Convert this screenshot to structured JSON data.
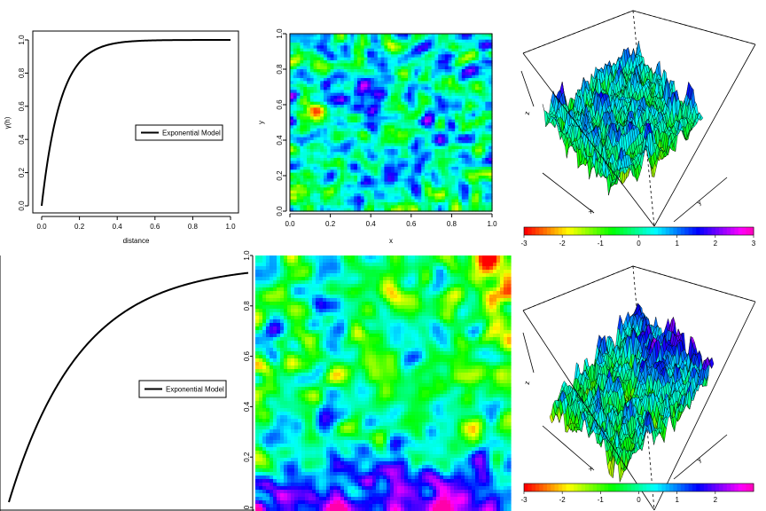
{
  "chart_data": [
    {
      "type": "line",
      "panel": "variogram-top",
      "xlabel": "distance",
      "ylabel": "γ(h)",
      "xticks": [
        "0.0",
        "0.2",
        "0.4",
        "0.6",
        "0.8",
        "1.0"
      ],
      "yticks": [
        "0.0",
        "0.2",
        "0.4",
        "0.6",
        "0.8",
        "1.0"
      ],
      "xlim": [
        0,
        1
      ],
      "ylim": [
        0,
        1
      ],
      "legend": "Exponential Model",
      "legend_position": "right",
      "range_param": 0.1,
      "x": [
        0,
        0.01,
        0.02,
        0.03,
        0.04,
        0.05,
        0.06,
        0.08,
        0.1,
        0.12,
        0.15,
        0.18,
        0.2,
        0.25,
        0.3,
        0.35,
        0.4,
        0.5,
        0.6,
        0.7,
        0.8,
        0.9,
        1.0
      ],
      "y": [
        0,
        0.095,
        0.181,
        0.259,
        0.33,
        0.393,
        0.451,
        0.551,
        0.632,
        0.699,
        0.777,
        0.835,
        0.865,
        0.918,
        0.95,
        0.97,
        0.982,
        0.993,
        0.998,
        0.999,
        1.0,
        1.0,
        1.0
      ]
    },
    {
      "type": "heatmap",
      "panel": "field-top",
      "xlabel": "x",
      "ylabel": "y",
      "xticks": [
        "0.0",
        "0.2",
        "0.4",
        "0.6",
        "0.8",
        "1.0"
      ],
      "yticks": [
        "0.0",
        "0.2",
        "0.4",
        "0.6",
        "0.8",
        "1.0"
      ],
      "xlim": [
        0,
        1
      ],
      "ylim": [
        0,
        1
      ],
      "colormap": "rainbow red-to-magenta",
      "range": [
        -3,
        3
      ]
    },
    {
      "type": "heatmap",
      "panel": "surface-top",
      "xlabel": "x",
      "ylabel": "y",
      "zlabel": "z",
      "colorbar_ticks": [
        "-3",
        "-2",
        "-1",
        "0",
        "1",
        "2",
        "3"
      ],
      "range": [
        -3,
        3
      ]
    },
    {
      "type": "line",
      "panel": "variogram-bottom",
      "legend": "Exponential Model",
      "legend_position": "right",
      "range_param": 0.3,
      "xlim": [
        0,
        1
      ],
      "ylim": [
        0,
        1
      ]
    },
    {
      "type": "heatmap",
      "panel": "field-bottom",
      "yticks": [
        "0",
        "0.2",
        "0.4",
        "0.6",
        "0.8",
        "1.0"
      ],
      "colormap": "rainbow red-to-magenta"
    },
    {
      "type": "heatmap",
      "panel": "surface-bottom",
      "xlabel": "x",
      "ylabel": "y",
      "zlabel": "z",
      "colorbar_ticks": [
        "-3",
        "-2",
        "-1",
        "0",
        "1",
        "2"
      ],
      "range": [
        -3,
        3
      ]
    }
  ]
}
